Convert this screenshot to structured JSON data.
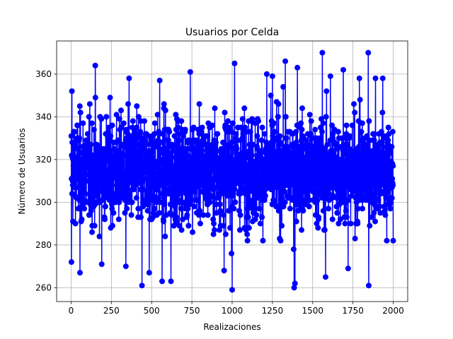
{
  "chart_data": {
    "type": "line",
    "title": "Usuarios por Celda",
    "xlabel": "Realizaciones",
    "ylabel": "Número de Usuarios",
    "xlim": [
      -90,
      2090
    ],
    "ylim": [
      253.5,
      375.5
    ],
    "xticks": [
      0,
      250,
      500,
      750,
      1000,
      1250,
      1500,
      1750,
      2000
    ],
    "yticks": [
      260,
      280,
      300,
      320,
      340,
      360
    ],
    "grid": true,
    "legend": "none",
    "series": [
      {
        "color": "#0000ff",
        "marker": "circle",
        "n_points": 2000,
        "x_start": 1,
        "x_step": 1,
        "mean": 315,
        "std": 17,
        "values_min": 259,
        "values_max": 370,
        "notable_points": [
          {
            "x": 2,
            "y": 272
          },
          {
            "x": 5,
            "y": 352
          },
          {
            "x": 55,
            "y": 267
          },
          {
            "x": 150,
            "y": 364
          },
          {
            "x": 190,
            "y": 271
          },
          {
            "x": 340,
            "y": 270
          },
          {
            "x": 360,
            "y": 358
          },
          {
            "x": 440,
            "y": 261
          },
          {
            "x": 485,
            "y": 267
          },
          {
            "x": 550,
            "y": 357
          },
          {
            "x": 565,
            "y": 263
          },
          {
            "x": 620,
            "y": 263
          },
          {
            "x": 740,
            "y": 361
          },
          {
            "x": 950,
            "y": 268
          },
          {
            "x": 1000,
            "y": 259
          },
          {
            "x": 1015,
            "y": 365
          },
          {
            "x": 1215,
            "y": 360
          },
          {
            "x": 1250,
            "y": 359
          },
          {
            "x": 1330,
            "y": 366
          },
          {
            "x": 1385,
            "y": 260
          },
          {
            "x": 1390,
            "y": 262
          },
          {
            "x": 1405,
            "y": 363
          },
          {
            "x": 1560,
            "y": 370
          },
          {
            "x": 1580,
            "y": 265
          },
          {
            "x": 1610,
            "y": 359
          },
          {
            "x": 1690,
            "y": 362
          },
          {
            "x": 1720,
            "y": 269
          },
          {
            "x": 1790,
            "y": 358
          },
          {
            "x": 1845,
            "y": 370
          },
          {
            "x": 1848,
            "y": 261
          },
          {
            "x": 1890,
            "y": 358
          },
          {
            "x": 1935,
            "y": 358
          },
          {
            "x": 1960,
            "y": 282
          },
          {
            "x": 2000,
            "y": 282
          }
        ]
      }
    ]
  }
}
